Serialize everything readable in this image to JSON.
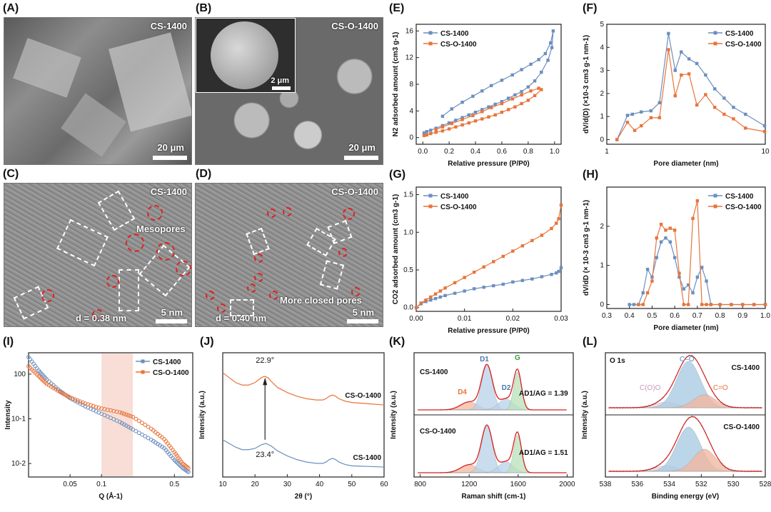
{
  "panels": {
    "A": {
      "label": "(A)",
      "sample": "CS-1400",
      "scale": "20 μm"
    },
    "B": {
      "label": "(B)",
      "sample": "CS-O-1400",
      "scale": "20 μm",
      "inset_scale": "2 μm"
    },
    "C": {
      "label": "(C)",
      "sample": "CS-1400",
      "annotation": "Mesopores",
      "d_spacing": "d = 0.38 nm",
      "scale": "5 nm"
    },
    "D": {
      "label": "(D)",
      "sample": "CS-O-1400",
      "annotation": "More closed  pores",
      "d_spacing": "d = 0.40 nm",
      "scale": "5 nm"
    },
    "E": {
      "label": "(E)"
    },
    "F": {
      "label": "(F)"
    },
    "G": {
      "label": "(G)"
    },
    "H": {
      "label": "(H)"
    },
    "I": {
      "label": "(I)"
    },
    "J": {
      "label": "(J)"
    },
    "K": {
      "label": "(K)"
    },
    "L": {
      "label": "(L)"
    }
  },
  "colors": {
    "cs1400": "#6b8fbf",
    "cso1400": "#e8743b",
    "fit_red": "#d62020"
  },
  "chart_data": [
    {
      "id": "E",
      "type": "line",
      "xlabel": "Relative pressure (P/P0)",
      "ylabel": "N2 adsorbed amount (cm3 g-1)",
      "xlim": [
        -0.05,
        1.05
      ],
      "ylim": [
        -1,
        17
      ],
      "xticks": [
        "0.0",
        "0.2",
        "0.4",
        "0.6",
        "0.8",
        "1.0"
      ],
      "yticks": [
        "0",
        "4",
        "8",
        "12",
        "16"
      ],
      "legend": "top-left",
      "series": [
        {
          "name": "CS-1400",
          "color": "#6b8fbf",
          "marker": "square",
          "x": [
            0.01,
            0.03,
            0.06,
            0.1,
            0.15,
            0.2,
            0.25,
            0.3,
            0.35,
            0.4,
            0.45,
            0.5,
            0.55,
            0.6,
            0.65,
            0.7,
            0.75,
            0.8,
            0.85,
            0.9,
            0.95,
            0.98,
            0.99,
            0.97,
            0.93,
            0.88,
            0.82,
            0.75,
            0.68,
            0.6,
            0.52,
            0.45,
            0.38,
            0.3,
            0.22,
            0.15
          ],
          "y": [
            0.7,
            0.9,
            1.1,
            1.4,
            1.8,
            2.2,
            2.6,
            3.0,
            3.4,
            3.8,
            4.2,
            4.6,
            5.0,
            5.4,
            5.9,
            6.4,
            6.9,
            7.6,
            8.5,
            9.8,
            11.6,
            13.5,
            16.0,
            14.2,
            12.6,
            11.7,
            11.0,
            10.2,
            9.4,
            8.6,
            7.8,
            7.0,
            6.2,
            5.3,
            4.3,
            3.2
          ]
        },
        {
          "name": "CS-O-1400",
          "color": "#e8743b",
          "marker": "square",
          "x": [
            0.01,
            0.03,
            0.06,
            0.1,
            0.15,
            0.2,
            0.25,
            0.3,
            0.35,
            0.4,
            0.45,
            0.5,
            0.55,
            0.6,
            0.65,
            0.7,
            0.75,
            0.8,
            0.85,
            0.9,
            0.88,
            0.82,
            0.75,
            0.68,
            0.6,
            0.52,
            0.45,
            0.38,
            0.3,
            0.22,
            0.15,
            0.1
          ],
          "y": [
            0.3,
            0.4,
            0.6,
            0.8,
            1.0,
            1.3,
            1.6,
            1.9,
            2.2,
            2.5,
            2.8,
            3.1,
            3.4,
            3.8,
            4.2,
            4.6,
            5.1,
            5.6,
            6.3,
            7.2,
            7.4,
            7.0,
            6.4,
            5.8,
            5.1,
            4.5,
            3.9,
            3.3,
            2.7,
            2.1,
            1.6,
            1.2
          ]
        }
      ]
    },
    {
      "id": "F",
      "type": "line",
      "xlabel": "Pore diameter (nm)",
      "ylabel": "dV/d(D)  (×10-3 cm3 g-1 nm-1)",
      "xscale": "log",
      "xlim": [
        1,
        10
      ],
      "ylim": [
        -0.2,
        5
      ],
      "xticks": [
        "1",
        "10"
      ],
      "yticks": [
        "0",
        "1",
        "2",
        "3",
        "4",
        "5"
      ],
      "legend": "top-right",
      "series": [
        {
          "name": "CS-1400",
          "color": "#6b8fbf",
          "marker": "square",
          "x": [
            1.16,
            1.35,
            1.45,
            1.65,
            1.9,
            2.15,
            2.45,
            2.7,
            2.95,
            3.3,
            3.7,
            4.2,
            4.8,
            5.5,
            6.3,
            7.5,
            9.9
          ],
          "y": [
            0.0,
            1.05,
            1.1,
            1.2,
            1.25,
            1.6,
            4.6,
            3.0,
            3.8,
            3.5,
            3.3,
            2.8,
            2.2,
            1.8,
            1.4,
            1.1,
            0.6
          ]
        },
        {
          "name": "CS-O-1400",
          "color": "#e8743b",
          "marker": "square",
          "x": [
            1.16,
            1.35,
            1.5,
            1.65,
            1.9,
            2.15,
            2.45,
            2.7,
            2.95,
            3.3,
            3.7,
            4.2,
            4.8,
            5.5,
            6.3,
            7.5,
            9.9
          ],
          "y": [
            0.0,
            0.75,
            0.4,
            0.6,
            0.95,
            0.95,
            3.9,
            1.9,
            2.8,
            2.85,
            1.5,
            1.95,
            1.4,
            1.1,
            0.9,
            0.5,
            0.35
          ]
        }
      ]
    },
    {
      "id": "G",
      "type": "line",
      "xlabel": "Relative pressure (P/P0)",
      "ylabel": "CO2 adsorbed amount (cm3 g-1)",
      "xlim": [
        0,
        0.03
      ],
      "ylim": [
        -0.05,
        1.6
      ],
      "xticks": [
        "0.00",
        "0.01",
        "0.02",
        "0.03"
      ],
      "yticks": [
        "0.0",
        "0.5",
        "1.0",
        "1.5"
      ],
      "legend": "top-left",
      "series": [
        {
          "name": "CS-1400",
          "color": "#6b8fbf",
          "marker": "square",
          "x": [
            0.0,
            0.001,
            0.002,
            0.003,
            0.004,
            0.005,
            0.006,
            0.008,
            0.01,
            0.012,
            0.014,
            0.016,
            0.018,
            0.02,
            0.022,
            0.024,
            0.026,
            0.028,
            0.029,
            0.0295,
            0.03
          ],
          "y": [
            0.0,
            0.05,
            0.08,
            0.1,
            0.12,
            0.14,
            0.16,
            0.19,
            0.22,
            0.25,
            0.27,
            0.29,
            0.31,
            0.34,
            0.36,
            0.38,
            0.41,
            0.44,
            0.46,
            0.48,
            0.53
          ]
        },
        {
          "name": "CS-O-1400",
          "color": "#e8743b",
          "marker": "square",
          "x": [
            0.0,
            0.001,
            0.002,
            0.003,
            0.004,
            0.005,
            0.006,
            0.008,
            0.01,
            0.012,
            0.014,
            0.016,
            0.018,
            0.02,
            0.022,
            0.024,
            0.026,
            0.028,
            0.029,
            0.0295,
            0.03
          ],
          "y": [
            0.0,
            0.06,
            0.1,
            0.14,
            0.18,
            0.22,
            0.26,
            0.33,
            0.4,
            0.47,
            0.54,
            0.61,
            0.68,
            0.75,
            0.82,
            0.89,
            0.96,
            1.05,
            1.12,
            1.18,
            1.36
          ]
        }
      ]
    },
    {
      "id": "H",
      "type": "line",
      "xlabel": "Pore diameter (nm)",
      "ylabel": "dV/dD  (× 10-3 cm3 g-1 nm-1)",
      "xlim": [
        0.3,
        1.0
      ],
      "ylim": [
        -0.1,
        3
      ],
      "xticks": [
        "0.3",
        "0.4",
        "0.5",
        "0.6",
        "0.7",
        "0.8",
        "0.9",
        "1.0"
      ],
      "yticks": [
        "0",
        "1",
        "2"
      ],
      "legend": "top-right",
      "series": [
        {
          "name": "CS-1400",
          "color": "#6b8fbf",
          "marker": "square",
          "x": [
            0.4,
            0.42,
            0.44,
            0.46,
            0.48,
            0.5,
            0.52,
            0.54,
            0.56,
            0.58,
            0.6,
            0.62,
            0.64,
            0.66,
            0.68,
            0.7,
            0.72,
            0.74,
            0.76,
            0.8,
            0.85,
            0.9,
            0.95,
            1.0
          ],
          "y": [
            0,
            0,
            0,
            0.3,
            0.9,
            0.7,
            1.2,
            1.6,
            1.7,
            1.6,
            1.2,
            0.7,
            0.4,
            0.5,
            0.3,
            0.7,
            0.95,
            0.6,
            0,
            0,
            0,
            0,
            0,
            0
          ]
        },
        {
          "name": "CS-O-1400",
          "color": "#e8743b",
          "marker": "square",
          "x": [
            0.44,
            0.46,
            0.48,
            0.5,
            0.52,
            0.54,
            0.56,
            0.58,
            0.6,
            0.62,
            0.64,
            0.66,
            0.68,
            0.7,
            0.72,
            0.74,
            0.76,
            0.8,
            0.85,
            0.9,
            0.95,
            1.0
          ],
          "y": [
            0,
            0,
            0.3,
            0.6,
            1.7,
            2.05,
            1.9,
            1.95,
            1.9,
            0.8,
            0,
            0,
            2.2,
            2.65,
            0,
            0,
            0,
            0,
            0,
            0,
            0,
            0
          ]
        }
      ]
    },
    {
      "id": "I",
      "type": "line",
      "xlabel": "Q (Å-1)",
      "ylabel": "Intensity",
      "xscale": "log",
      "yscale": "log",
      "xlim": [
        0.02,
        0.75
      ],
      "ylim": [
        0.005,
        3
      ],
      "xticks": [
        "0.05",
        "0.1",
        "0.5"
      ],
      "yticks": [
        "10-2",
        "10-1",
        "100"
      ],
      "legend": "top-right",
      "highlight_range": [
        0.1,
        0.2
      ],
      "series": [
        {
          "name": "CS-1400",
          "color": "#6b8fbf",
          "x": [
            0.02,
            0.025,
            0.03,
            0.04,
            0.05,
            0.07,
            0.1,
            0.15,
            0.2,
            0.3,
            0.4,
            0.5,
            0.6,
            0.7
          ],
          "y": [
            2.4,
            1.2,
            0.75,
            0.42,
            0.29,
            0.19,
            0.13,
            0.085,
            0.058,
            0.034,
            0.022,
            0.012,
            0.008,
            0.0062
          ]
        },
        {
          "name": "CS-O-1400",
          "color": "#e8743b",
          "x": [
            0.02,
            0.025,
            0.03,
            0.04,
            0.05,
            0.07,
            0.1,
            0.15,
            0.2,
            0.3,
            0.4,
            0.5,
            0.6,
            0.7
          ],
          "y": [
            1.5,
            0.9,
            0.6,
            0.4,
            0.3,
            0.22,
            0.17,
            0.14,
            0.11,
            0.06,
            0.035,
            0.018,
            0.01,
            0.0075
          ]
        }
      ]
    },
    {
      "id": "J",
      "type": "line",
      "xlabel": "2θ (°)",
      "ylabel": "Intensity (a.u.)",
      "xlim": [
        10,
        60
      ],
      "xticks": [
        "10",
        "20",
        "30",
        "40",
        "50",
        "60"
      ],
      "annotations": [
        "22.9°",
        "23.4°"
      ],
      "series": [
        {
          "name": "CS-O-1400",
          "color": "#e8743b",
          "x": [
            10,
            12,
            14,
            16,
            18,
            20,
            21,
            22,
            22.9,
            24,
            25,
            27,
            30,
            33,
            36,
            39,
            41,
            42,
            43,
            44,
            45,
            46,
            48,
            50,
            55,
            60
          ],
          "y": [
            0.84,
            0.8,
            0.76,
            0.74,
            0.74,
            0.76,
            0.78,
            0.8,
            0.81,
            0.8,
            0.77,
            0.72,
            0.68,
            0.65,
            0.63,
            0.62,
            0.62,
            0.63,
            0.65,
            0.66,
            0.65,
            0.63,
            0.61,
            0.6,
            0.59,
            0.58
          ]
        },
        {
          "name": "CS-1400",
          "color": "#6b8fbf",
          "x": [
            10,
            12,
            14,
            16,
            18,
            20,
            21,
            22,
            23.4,
            25,
            27,
            30,
            33,
            36,
            39,
            41,
            42,
            43,
            44,
            45,
            46,
            48,
            50,
            55,
            60
          ],
          "y": [
            0.3,
            0.27,
            0.24,
            0.22,
            0.22,
            0.23,
            0.245,
            0.26,
            0.27,
            0.25,
            0.21,
            0.17,
            0.14,
            0.12,
            0.11,
            0.11,
            0.12,
            0.14,
            0.15,
            0.14,
            0.12,
            0.1,
            0.09,
            0.085,
            0.08
          ]
        }
      ]
    },
    {
      "id": "K",
      "type": "area",
      "xlabel": "Raman shift (cm-1)",
      "ylabel": "Intensity (a.u.)",
      "xlim": [
        750,
        2050
      ],
      "xticks": [
        "800",
        "1200",
        "1600",
        "2000"
      ],
      "texts": {
        "top_sample": "CS-1400",
        "bottom_sample": "CS-O-1400",
        "ratio_top": "AD1/AG = 1.39",
        "ratio_bottom": "AD1/AG = 1.51",
        "D1": "D1",
        "D2": "D2",
        "D4": "D4",
        "G": "G"
      },
      "peaks": {
        "D4": 1200,
        "D1": 1345,
        "D3": 1500,
        "G": 1595
      }
    },
    {
      "id": "L",
      "type": "area",
      "xlabel": "Binding energy (eV)",
      "ylabel": "Intensity (a.u.)",
      "xlim": [
        538,
        528
      ],
      "xticks": [
        "538",
        "536",
        "534",
        "532",
        "530",
        "528"
      ],
      "texts": {
        "title": "O 1s",
        "top_sample": "CS-1400",
        "bottom_sample": "CS-O-1400",
        "co": "C–O",
        "coo": "C(O)O",
        "c_eq_o": "C=O"
      },
      "peaks": {
        "C(O)O": 534.2,
        "C–O": 532.8,
        "C=O": 531.8
      }
    }
  ]
}
